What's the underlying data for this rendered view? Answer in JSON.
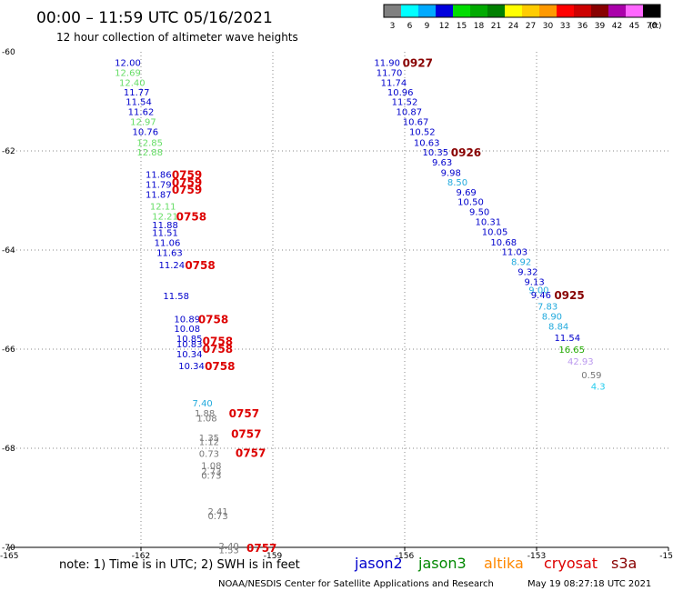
{
  "title": "00:00 – 11:59 UTC 05/16/2021",
  "subtitle": "12 hour collection of altimeter wave heights",
  "color_scale": {
    "labels": [
      "3",
      "6",
      "9",
      "12",
      "15",
      "18",
      "21",
      "24",
      "27",
      "30",
      "33",
      "36",
      "39",
      "42",
      "45",
      "70"
    ],
    "unit": "(ft)",
    "colors": [
      "#808080",
      "#00ffff",
      "#00aaff",
      "#0000dd",
      "#00dd00",
      "#00aa00",
      "#008000",
      "#ffff00",
      "#ffcc00",
      "#ff9900",
      "#ff0000",
      "#cc0000",
      "#880000",
      "#aa00aa",
      "#ff66ff",
      "#000000"
    ]
  },
  "note": "note: 1) Time is in UTC; 2) SWH is in feet",
  "satellites": [
    {
      "name": "jason2",
      "color": "#0000cc"
    },
    {
      "name": "jason3",
      "color": "#008800"
    },
    {
      "name": "altika",
      "color": "#ff8800"
    },
    {
      "name": "cryosat",
      "color": "#dd0000"
    },
    {
      "name": "s3a",
      "color": "#880000"
    }
  ],
  "credit": "NOAA/NESDIS Center for Satellite Applications and Research",
  "timestamp": "May 19 08:27:18 UTC 2021",
  "chart_data": {
    "type": "scatter",
    "xlim": [
      -165,
      -150
    ],
    "ylim": [
      -70,
      -60
    ],
    "x_ticks": [
      "-165",
      "-162",
      "-159",
      "-156",
      "-153",
      "-15"
    ],
    "y_ticks": [
      "-60",
      "-62",
      "-64",
      "-66",
      "-68",
      "-70"
    ],
    "grid": "dotted",
    "points": [
      {
        "x": -162.3,
        "y": -60.23,
        "t": "12.00",
        "c": "#0000cc"
      },
      {
        "x": -162.3,
        "y": -60.43,
        "t": "12.69",
        "c": "#66dd66"
      },
      {
        "x": -162.2,
        "y": -60.63,
        "t": "12.40",
        "c": "#66dd66"
      },
      {
        "x": -162.1,
        "y": -60.83,
        "t": "11.77",
        "c": "#0000cc"
      },
      {
        "x": -162.05,
        "y": -61.02,
        "t": "11.54",
        "c": "#0000cc"
      },
      {
        "x": -162.0,
        "y": -61.22,
        "t": "11.62",
        "c": "#0000cc"
      },
      {
        "x": -161.95,
        "y": -61.42,
        "t": "12.97",
        "c": "#66dd66"
      },
      {
        "x": -161.9,
        "y": -61.62,
        "t": "10.76",
        "c": "#0000cc"
      },
      {
        "x": -161.8,
        "y": -61.84,
        "t": "12.85",
        "c": "#66dd66"
      },
      {
        "x": -161.8,
        "y": -62.04,
        "t": "12.88",
        "c": "#66dd66"
      },
      {
        "x": -161.6,
        "y": -62.49,
        "t": "11.86",
        "c": "#0000cc"
      },
      {
        "x": -161.6,
        "y": -62.69,
        "t": "11.79",
        "c": "#0000cc"
      },
      {
        "x": -161.6,
        "y": -62.89,
        "t": "11.87",
        "c": "#0000cc"
      },
      {
        "x": -161.5,
        "y": -63.13,
        "t": "12.11",
        "c": "#66dd66"
      },
      {
        "x": -161.45,
        "y": -63.33,
        "t": "12.21",
        "c": "#66dd66"
      },
      {
        "x": -161.45,
        "y": -63.5,
        "t": "11.88",
        "c": "#0000cc"
      },
      {
        "x": -161.45,
        "y": -63.66,
        "t": "11.51",
        "c": "#0000cc"
      },
      {
        "x": -161.4,
        "y": -63.86,
        "t": "11.06",
        "c": "#0000cc"
      },
      {
        "x": -161.35,
        "y": -64.06,
        "t": "11.63",
        "c": "#0000cc"
      },
      {
        "x": -161.3,
        "y": -64.31,
        "t": "11.24",
        "c": "#0000cc"
      },
      {
        "x": -161.2,
        "y": -64.94,
        "t": "11.58",
        "c": "#0000cc"
      },
      {
        "x": -160.95,
        "y": -65.4,
        "t": "10.89",
        "c": "#0000cc"
      },
      {
        "x": -160.95,
        "y": -65.6,
        "t": "10.08",
        "c": "#0000cc"
      },
      {
        "x": -160.9,
        "y": -65.8,
        "t": "10.85",
        "c": "#0000cc"
      },
      {
        "x": -160.9,
        "y": -65.91,
        "t": "10.83",
        "c": "#0000cc"
      },
      {
        "x": -160.9,
        "y": -66.11,
        "t": "10.34",
        "c": "#0000cc"
      },
      {
        "x": -160.85,
        "y": -66.35,
        "t": "10.34",
        "c": "#0000cc"
      },
      {
        "x": -160.6,
        "y": -67.1,
        "t": "7.40",
        "c": "#22aadd"
      },
      {
        "x": -160.55,
        "y": -67.3,
        "t": "1.88",
        "c": "#777777"
      },
      {
        "x": -160.5,
        "y": -67.4,
        "t": "1.08",
        "c": "#777777"
      },
      {
        "x": -160.45,
        "y": -67.8,
        "t": "1.35",
        "c": "#777777"
      },
      {
        "x": -160.45,
        "y": -67.88,
        "t": "1.12",
        "c": "#777777"
      },
      {
        "x": -160.45,
        "y": -68.12,
        "t": "0.73",
        "c": "#777777"
      },
      {
        "x": -160.4,
        "y": -68.36,
        "t": "1.08",
        "c": "#777777"
      },
      {
        "x": -160.4,
        "y": -68.48,
        "t": "2.73",
        "c": "#777777"
      },
      {
        "x": -160.4,
        "y": -68.56,
        "t": "0.73",
        "c": "#777777"
      },
      {
        "x": -160.25,
        "y": -69.28,
        "t": "2.41",
        "c": "#777777"
      },
      {
        "x": -160.25,
        "y": -69.38,
        "t": "0.73",
        "c": "#777777"
      },
      {
        "x": -160.0,
        "y": -69.98,
        "t": "2.40",
        "c": "#777777"
      },
      {
        "x": -160.0,
        "y": -70.06,
        "t": "1.53",
        "c": "#777777"
      },
      {
        "x": -156.4,
        "y": -60.23,
        "t": "11.90",
        "c": "#0000cc"
      },
      {
        "x": -156.35,
        "y": -60.43,
        "t": "11.70",
        "c": "#0000cc"
      },
      {
        "x": -156.25,
        "y": -60.63,
        "t": "11.74",
        "c": "#0000cc"
      },
      {
        "x": -156.1,
        "y": -60.83,
        "t": "10.96",
        "c": "#0000cc"
      },
      {
        "x": -156.0,
        "y": -61.02,
        "t": "11.52",
        "c": "#0000cc"
      },
      {
        "x": -155.9,
        "y": -61.22,
        "t": "10.87",
        "c": "#0000cc"
      },
      {
        "x": -155.75,
        "y": -61.42,
        "t": "10.67",
        "c": "#0000cc"
      },
      {
        "x": -155.6,
        "y": -61.62,
        "t": "10.52",
        "c": "#0000cc"
      },
      {
        "x": -155.5,
        "y": -61.84,
        "t": "10.63",
        "c": "#0000cc"
      },
      {
        "x": -155.3,
        "y": -62.04,
        "t": "10.35",
        "c": "#0000cc"
      },
      {
        "x": -155.15,
        "y": -62.24,
        "t": "9.63",
        "c": "#0000cc"
      },
      {
        "x": -154.95,
        "y": -62.45,
        "t": "9.98",
        "c": "#0000cc"
      },
      {
        "x": -154.8,
        "y": -62.64,
        "t": "8.50",
        "c": "#22aadd"
      },
      {
        "x": -154.6,
        "y": -62.84,
        "t": "9.69",
        "c": "#0000cc"
      },
      {
        "x": -154.5,
        "y": -63.04,
        "t": "10.50",
        "c": "#0000cc"
      },
      {
        "x": -154.3,
        "y": -63.24,
        "t": "9.50",
        "c": "#0000cc"
      },
      {
        "x": -154.1,
        "y": -63.44,
        "t": "10.31",
        "c": "#0000cc"
      },
      {
        "x": -153.95,
        "y": -63.64,
        "t": "10.05",
        "c": "#0000cc"
      },
      {
        "x": -153.75,
        "y": -63.85,
        "t": "10.68",
        "c": "#0000cc"
      },
      {
        "x": -153.5,
        "y": -64.05,
        "t": "11.03",
        "c": "#0000cc"
      },
      {
        "x": -153.35,
        "y": -64.25,
        "t": "8.92",
        "c": "#22aadd"
      },
      {
        "x": -153.2,
        "y": -64.45,
        "t": "9.32",
        "c": "#0000cc"
      },
      {
        "x": -153.05,
        "y": -64.65,
        "t": "9.13",
        "c": "#0000cc"
      },
      {
        "x": -152.95,
        "y": -64.82,
        "t": "9.00",
        "c": "#22aadd"
      },
      {
        "x": -152.9,
        "y": -64.92,
        "t": "9.46",
        "c": "#0000cc"
      },
      {
        "x": -152.75,
        "y": -65.15,
        "t": "7.83",
        "c": "#22aadd"
      },
      {
        "x": -152.65,
        "y": -65.35,
        "t": "8.90",
        "c": "#22aadd"
      },
      {
        "x": -152.5,
        "y": -65.55,
        "t": "8.84",
        "c": "#22aadd"
      },
      {
        "x": -152.3,
        "y": -65.78,
        "t": "11.54",
        "c": "#0000cc"
      },
      {
        "x": -152.2,
        "y": -66.02,
        "t": "16.65",
        "c": "#22aa00"
      },
      {
        "x": -152.0,
        "y": -66.26,
        "t": "42.93",
        "c": "#bb99ee"
      },
      {
        "x": -151.75,
        "y": -66.53,
        "t": "0.59",
        "c": "#777777"
      },
      {
        "x": -151.6,
        "y": -66.76,
        "t": "4.3",
        "c": "#22ccee"
      }
    ],
    "pass_labels": [
      {
        "x": -161.3,
        "y": -62.49,
        "t": "0759",
        "c": "#dd0000"
      },
      {
        "x": -161.3,
        "y": -62.64,
        "t": "0759",
        "c": "#dd0000"
      },
      {
        "x": -161.3,
        "y": -62.79,
        "t": "0759",
        "c": "#dd0000"
      },
      {
        "x": -161.2,
        "y": -63.33,
        "t": "0758",
        "c": "#dd0000"
      },
      {
        "x": -161.0,
        "y": -64.31,
        "t": "0758",
        "c": "#dd0000"
      },
      {
        "x": -160.7,
        "y": -65.4,
        "t": "0758",
        "c": "#dd0000"
      },
      {
        "x": -160.6,
        "y": -65.84,
        "t": "0758",
        "c": "#dd0000"
      },
      {
        "x": -160.6,
        "y": -66.0,
        "t": "0758",
        "c": "#dd0000"
      },
      {
        "x": -160.55,
        "y": -66.35,
        "t": "0758",
        "c": "#dd0000"
      },
      {
        "x": -160.0,
        "y": -67.3,
        "t": "0757",
        "c": "#dd0000"
      },
      {
        "x": -159.95,
        "y": -67.72,
        "t": "0757",
        "c": "#dd0000"
      },
      {
        "x": -159.85,
        "y": -68.1,
        "t": "0757",
        "c": "#dd0000"
      },
      {
        "x": -159.6,
        "y": -70.02,
        "t": "0757",
        "c": "#dd0000"
      },
      {
        "x": -156.05,
        "y": -60.23,
        "t": "0927",
        "c": "#880000"
      },
      {
        "x": -154.95,
        "y": -62.04,
        "t": "0926",
        "c": "#880000"
      },
      {
        "x": -152.6,
        "y": -64.92,
        "t": "0925",
        "c": "#880000"
      }
    ]
  }
}
